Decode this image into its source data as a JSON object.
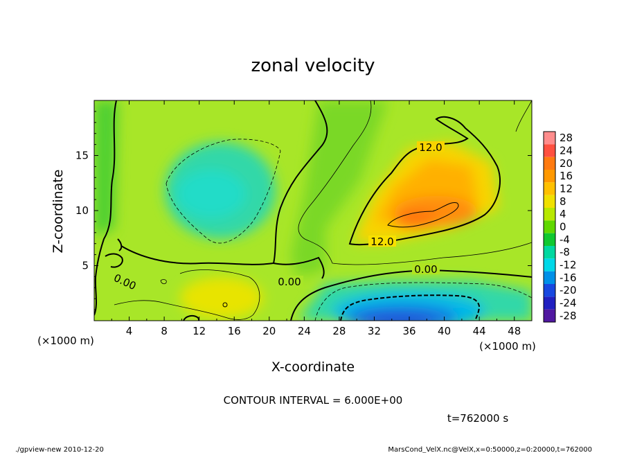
{
  "chart_data": {
    "type": "heatmap",
    "title": "zonal velocity",
    "xlabel": "X-coordinate",
    "ylabel": "Z-coordinate",
    "x_unit": "(×1000 m)",
    "y_unit": "(×1000 m)",
    "xlim": [
      0,
      50
    ],
    "ylim": [
      0,
      20
    ],
    "x_ticks": [
      4,
      8,
      12,
      16,
      20,
      24,
      28,
      32,
      36,
      40,
      44,
      48
    ],
    "y_ticks": [
      5,
      10,
      15
    ],
    "colorbar": {
      "levels": [
        28,
        24,
        20,
        16,
        12,
        8,
        4,
        0,
        -4,
        -8,
        -12,
        -16,
        -20,
        -24,
        -28
      ],
      "colors": [
        "#ff8c8c",
        "#ff5040",
        "#ff7a10",
        "#ff9800",
        "#ffc000",
        "#f0e000",
        "#b8e800",
        "#60d800",
        "#10c830",
        "#00d8a0",
        "#00d8e8",
        "#0090e8",
        "#1848e0",
        "#2020c0",
        "#5018a0"
      ]
    },
    "contour_labels": [
      "12.0",
      "12.0",
      "0.00",
      "0.00",
      "0.00"
    ],
    "contour_interval": "CONTOUR INTERVAL = 6.000E+00",
    "time_label": "t=762000 s",
    "footer_left": "./gpview-new  2010-12-20",
    "footer_right": "MarsCond_VelX.nc@VelX,x=0:50000,z=0:20000,t=762000",
    "fields": [
      {
        "name": "background",
        "x": 25,
        "z": 10,
        "value": 4
      },
      {
        "name": "jet-positive-core",
        "x": 37,
        "z": 11,
        "value": 18
      },
      {
        "name": "jet-positive-outer",
        "x": 36,
        "z": 12,
        "value": 11
      },
      {
        "name": "negative-upper-left",
        "x": 14,
        "z": 12,
        "value": -7
      },
      {
        "name": "negative-lower-right",
        "x": 37,
        "z": 1.5,
        "value": -18
      },
      {
        "name": "surface-warm-patch",
        "x": 15,
        "z": 2,
        "value": 7
      }
    ]
  }
}
